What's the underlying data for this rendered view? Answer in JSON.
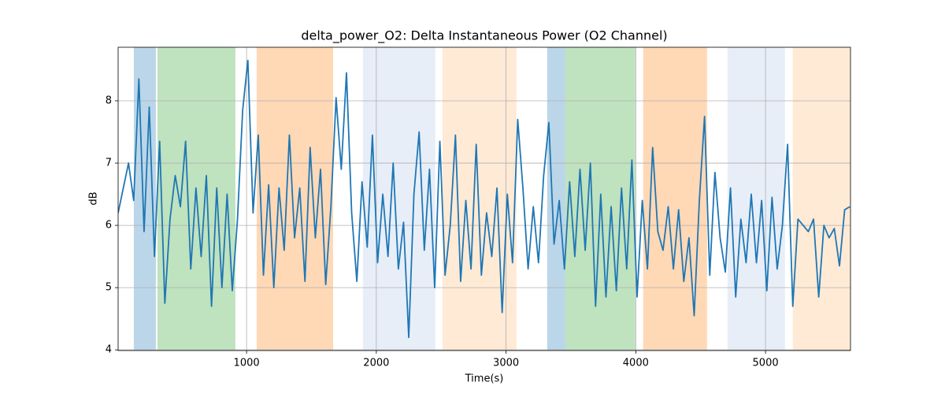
{
  "chart_data": {
    "type": "line",
    "title": "delta_power_O2: Delta Instantaneous Power (O2 Channel)",
    "xlabel": "Time(s)",
    "ylabel": "dB",
    "xlim": [
      10,
      5655
    ],
    "ylim": [
      3.99,
      8.86
    ],
    "xticks": [
      1000,
      2000,
      3000,
      4000,
      5000
    ],
    "yticks": [
      4,
      5,
      6,
      7,
      8
    ],
    "grid": true,
    "span_alpha": 0.3,
    "spans": [
      {
        "start": 131,
        "end": 301,
        "color": "#1f77b4"
      },
      {
        "start": 313,
        "end": 914,
        "color": "#2ca02c"
      },
      {
        "start": 1078,
        "end": 1667,
        "color": "#ff7f0e"
      },
      {
        "start": 1897,
        "end": 2455,
        "color": "#aec7e8"
      },
      {
        "start": 2510,
        "end": 3080,
        "color": "#ffbb78"
      },
      {
        "start": 3317,
        "end": 3457,
        "color": "#1f77b4"
      },
      {
        "start": 3457,
        "end": 3997,
        "color": "#2ca02c"
      },
      {
        "start": 4057,
        "end": 4549,
        "color": "#ff7f0e"
      },
      {
        "start": 4707,
        "end": 5150,
        "color": "#aec7e8"
      },
      {
        "start": 5210,
        "end": 5655,
        "color": "#ffbb78"
      }
    ],
    "x": [
      10,
      50,
      90,
      130,
      170,
      210,
      250,
      290,
      330,
      370,
      410,
      450,
      490,
      530,
      570,
      610,
      650,
      690,
      730,
      770,
      810,
      850,
      890,
      930,
      970,
      1010,
      1050,
      1090,
      1130,
      1170,
      1210,
      1250,
      1290,
      1330,
      1370,
      1410,
      1450,
      1490,
      1530,
      1570,
      1610,
      1650,
      1690,
      1730,
      1770,
      1810,
      1850,
      1890,
      1930,
      1970,
      2010,
      2050,
      2090,
      2130,
      2170,
      2210,
      2250,
      2290,
      2330,
      2370,
      2410,
      2450,
      2490,
      2530,
      2570,
      2610,
      2650,
      2690,
      2730,
      2770,
      2810,
      2850,
      2890,
      2930,
      2970,
      3010,
      3050,
      3090,
      3130,
      3170,
      3210,
      3250,
      3290,
      3330,
      3370,
      3410,
      3450,
      3490,
      3530,
      3570,
      3610,
      3650,
      3690,
      3730,
      3770,
      3810,
      3850,
      3890,
      3930,
      3970,
      4010,
      4050,
      4090,
      4130,
      4170,
      4210,
      4250,
      4290,
      4330,
      4370,
      4410,
      4450,
      4490,
      4530,
      4570,
      4610,
      4650,
      4690,
      4730,
      4770,
      4810,
      4850,
      4890,
      4930,
      4970,
      5010,
      5050,
      5090,
      5130,
      5170,
      5210,
      5250,
      5290,
      5330,
      5370,
      5410,
      5450,
      5490,
      5530,
      5570,
      5610,
      5650
    ],
    "series": [
      {
        "color": "#1f77b4",
        "values": [
          6.2,
          6.6,
          7.0,
          6.4,
          8.35,
          5.9,
          7.9,
          5.5,
          7.35,
          4.75,
          6.1,
          6.8,
          6.3,
          7.35,
          5.3,
          6.6,
          5.5,
          6.8,
          4.7,
          6.6,
          5.0,
          6.5,
          4.95,
          6.1,
          7.85,
          8.65,
          6.2,
          7.45,
          5.2,
          6.65,
          5.0,
          6.6,
          5.6,
          7.45,
          5.8,
          6.6,
          5.1,
          7.25,
          5.8,
          6.9,
          5.05,
          6.3,
          8.05,
          6.9,
          8.45,
          6.2,
          5.1,
          6.7,
          5.65,
          7.45,
          5.4,
          6.5,
          5.5,
          7.0,
          5.3,
          6.05,
          4.2,
          6.5,
          7.5,
          5.6,
          6.9,
          5.0,
          7.35,
          5.2,
          6.0,
          7.45,
          5.1,
          6.4,
          5.3,
          7.3,
          5.2,
          6.2,
          5.5,
          6.6,
          4.6,
          6.5,
          5.4,
          7.7,
          6.6,
          5.3,
          6.3,
          5.4,
          6.8,
          7.65,
          5.7,
          6.4,
          5.3,
          6.7,
          5.5,
          6.9,
          5.6,
          7.0,
          4.7,
          6.5,
          4.85,
          6.3,
          4.95,
          6.6,
          5.3,
          7.05,
          4.85,
          6.4,
          5.3,
          7.25,
          5.9,
          5.6,
          6.3,
          5.3,
          6.25,
          5.1,
          5.8,
          4.55,
          6.4,
          7.75,
          5.2,
          6.85,
          5.8,
          5.25,
          6.6,
          4.85,
          6.1,
          5.4,
          6.5,
          5.4,
          6.4,
          4.95,
          6.45,
          5.3,
          6.0,
          7.3,
          4.7,
          6.1,
          6.0,
          5.9,
          6.1,
          4.85,
          6.0,
          5.8,
          5.95,
          5.35,
          6.25,
          6.3
        ]
      }
    ]
  }
}
